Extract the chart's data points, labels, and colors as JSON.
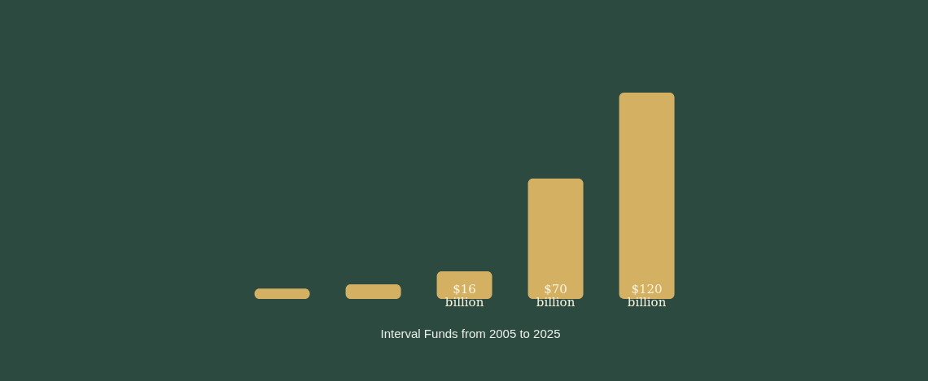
{
  "chart_data": {
    "type": "bar",
    "annotations": [
      "Interval Funds from 2005 to 2025"
    ],
    "categories": [
      null,
      null,
      null,
      null,
      null
    ],
    "values": [
      6,
      8.5,
      16,
      70,
      120
    ],
    "value_labels": [
      null,
      null,
      "$16 billion",
      "$70 billion",
      "$120 billion"
    ],
    "color": "#d4b062"
  }
}
